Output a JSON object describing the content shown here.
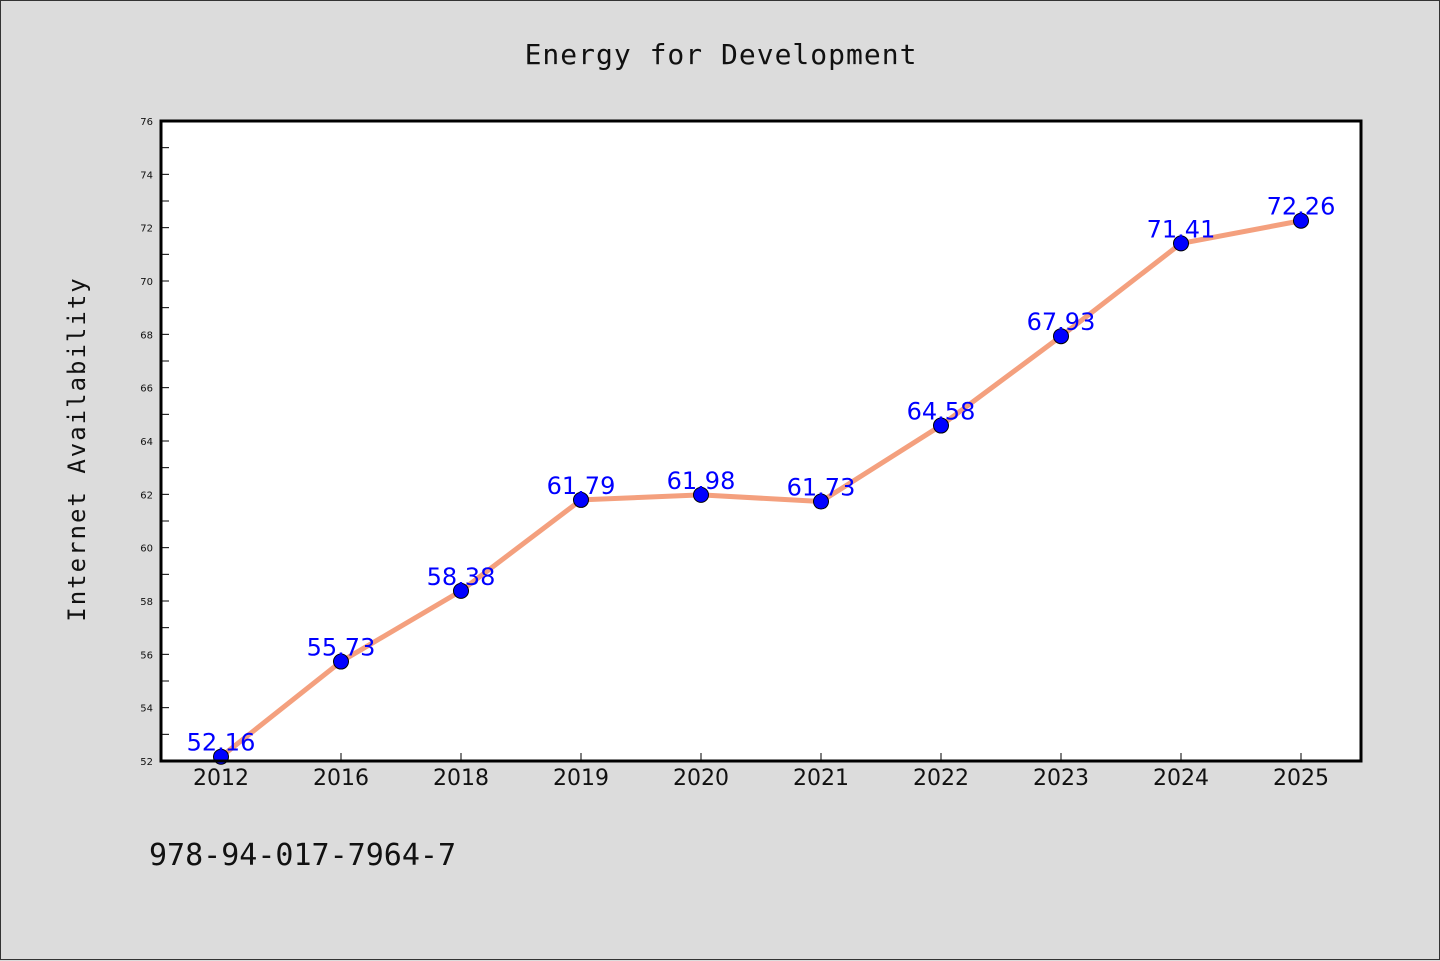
{
  "chart_data": {
    "type": "line",
    "title": "Energy for Development",
    "xlabel": "",
    "ylabel": "Internet Availability",
    "categories": [
      "2012",
      "2016",
      "2018",
      "2019",
      "2020",
      "2021",
      "2022",
      "2023",
      "2024",
      "2025"
    ],
    "series": [
      {
        "values": [
          52.16,
          55.73,
          58.38,
          61.79,
          61.98,
          61.73,
          64.58,
          67.93,
          71.41,
          72.26
        ],
        "data_labels": [
          "52.16",
          "55.73",
          "58.38",
          "61.79",
          "61.98",
          "61.73",
          "64.58",
          "67.93",
          "71.41",
          "72.26"
        ],
        "line_color": "#f4a07e",
        "marker_color": "#0000ff"
      }
    ],
    "ylim": [
      52,
      76
    ],
    "yticks": [
      52,
      54,
      56,
      58,
      60,
      62,
      64,
      66,
      68,
      70,
      72,
      74,
      76
    ],
    "grid": false,
    "legend": "none"
  },
  "footer": {
    "isbn": "978-94-017-7964-7"
  },
  "colors": {
    "background": "#dcdcdc",
    "plot_background": "#ffffff",
    "line": "#f4a07e",
    "marker": "#0000ff",
    "data_label": "#0000ff"
  }
}
